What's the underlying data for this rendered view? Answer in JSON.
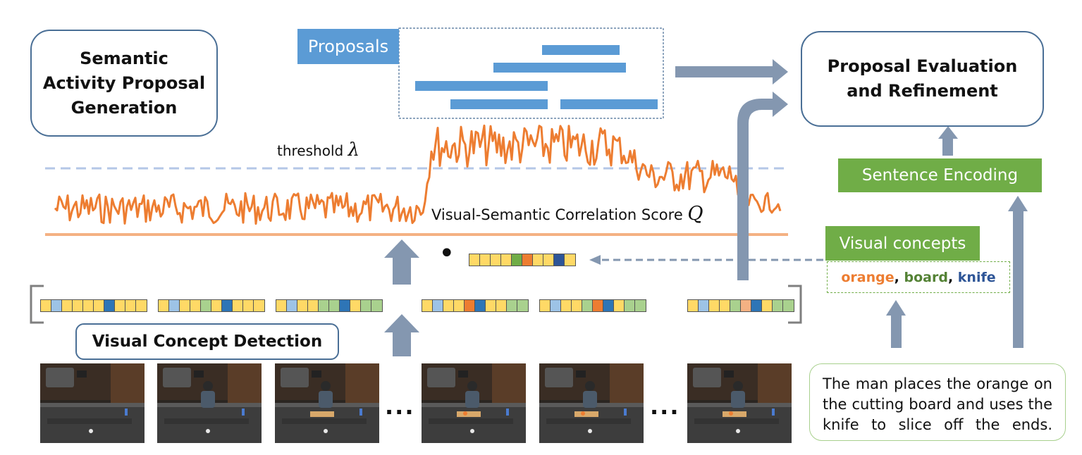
{
  "semantic_box": {
    "line1": "Semantic",
    "line2": "Activity Proposal",
    "line3": "Generation"
  },
  "proposals_tag": "Proposals",
  "evaluation_box": {
    "line1": "Proposal Evaluation",
    "line2": "and Refinement"
  },
  "sentence_encoding_tag": "Sentence Encoding",
  "visual_concepts_tag": "Visual concepts",
  "concepts": {
    "w1": "orange",
    "w2": "board",
    "w3": "knife",
    "sep": ", "
  },
  "threshold_label": "threshold",
  "threshold_symbol": "λ",
  "score_label": "Visual-Semantic Correlation Score",
  "score_symbol": "Q",
  "detection_box": "Visual Concept Detection",
  "dot": "•",
  "ellipsis": "...",
  "sentence": "The man places the orange on the cutting board and uses the knife to slice off the ends.",
  "colors": {
    "box_border": "#4a6f96",
    "proposal_blue": "#5b9bd5",
    "green": "#70ad47",
    "arrow": "#8497b0",
    "curve": "#ed7d31",
    "baseline": "#f4b183",
    "threshold_line": "#b4c7e7",
    "orange_word": "#ed7d31",
    "board_word": "#548235",
    "knife_word": "#2e5597"
  },
  "concept_vectors": [
    [
      "#ffd966",
      "#9dc3e6",
      "#ffd966",
      "#ffd966",
      "#ffd966",
      "#ffd966",
      "#2e75b6",
      "#ffd966",
      "#ffd966",
      "#ffd966"
    ],
    [
      "#ffd966",
      "#9dc3e6",
      "#ffd966",
      "#ffd966",
      "#a9d18e",
      "#ffd966",
      "#2e75b6",
      "#ffd966",
      "#ffd966",
      "#ffd966"
    ],
    [
      "#ffd966",
      "#9dc3e6",
      "#ffd966",
      "#ffd966",
      "#a9d18e",
      "#a9d18e",
      "#2e75b6",
      "#ffd966",
      "#a9d18e",
      "#a9d18e"
    ],
    [
      "#ffd966",
      "#9dc3e6",
      "#ffd966",
      "#ffd966",
      "#ed7d31",
      "#2e75b6",
      "#ffd966",
      "#ffd966",
      "#a9d18e",
      "#a9d18e"
    ],
    [
      "#ffd966",
      "#9dc3e6",
      "#ffd966",
      "#ffd966",
      "#a9d18e",
      "#ed7d31",
      "#2e75b6",
      "#ffd966",
      "#a9d18e",
      "#a9d18e"
    ],
    [
      "#ffd966",
      "#9dc3e6",
      "#ffd966",
      "#ffd966",
      "#a9d18e",
      "#f4b183",
      "#2e75b6",
      "#ffd966",
      "#a9d18e",
      "#a9d18e"
    ]
  ],
  "query_vector": [
    "#ffd966",
    "#ffd966",
    "#ffd966",
    "#ffd966",
    "#70ad47",
    "#ed7d31",
    "#ffd966",
    "#ffd966",
    "#2e5597",
    "#ffd966"
  ]
}
